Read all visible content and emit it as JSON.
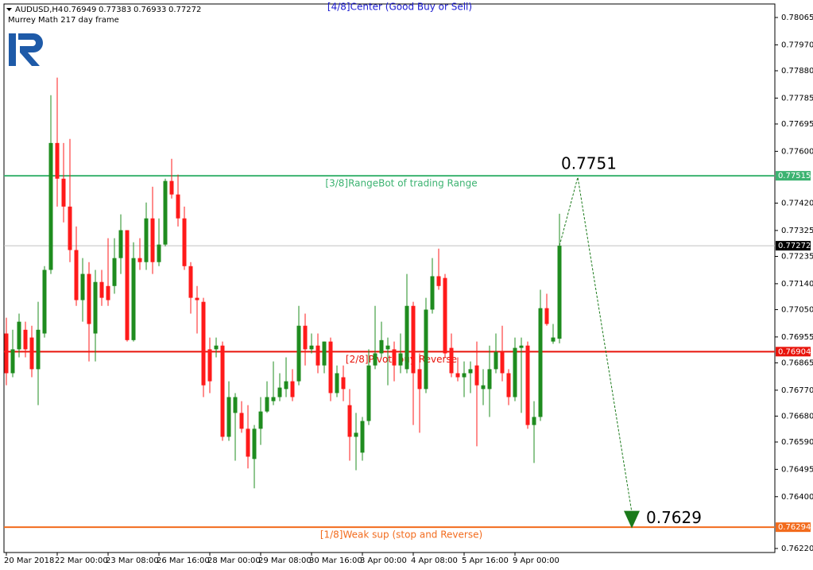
{
  "chart_data": {
    "type": "candlestick",
    "title": "AUDUSD,H4",
    "subtitle": "Murrey Math 217 day frame",
    "top_label": "[4/8]Center (Good Buy or Sell)",
    "up_color": "#1f8c1f",
    "down_color": "#ff1a1a",
    "categories": [
      "20 Mar 2018",
      null,
      null,
      null,
      null,
      null,
      null,
      null,
      "22 Mar 00:00",
      null,
      null,
      null,
      null,
      null,
      null,
      null,
      "23 Mar 08:00",
      null,
      null,
      null,
      null,
      null,
      null,
      null,
      "26 Mar 16:00",
      null,
      null,
      null,
      null,
      null,
      null,
      null,
      "28 Mar 00:00",
      null,
      null,
      null,
      null,
      null,
      null,
      null,
      "29 Mar 08:00",
      null,
      null,
      null,
      null,
      null,
      null,
      null,
      "30 Mar 16:00",
      null,
      null,
      null,
      null,
      null,
      null,
      null,
      "3 Apr 00:00",
      null,
      null,
      null,
      null,
      null,
      null,
      null,
      "4 Apr 08:00",
      null,
      null,
      null,
      null,
      null,
      null,
      null,
      "5 Apr 16:00",
      null,
      null,
      null,
      null,
      null,
      null,
      null,
      "9 Apr 00:00",
      null,
      null,
      null,
      null,
      null,
      null,
      null
    ],
    "open": [
      0.76967,
      0.76829,
      0.76912,
      0.7698,
      0.76953,
      0.76843,
      0.76967,
      0.77188,
      0.77629,
      0.77505,
      0.77408,
      0.77257,
      0.77083,
      0.77174,
      0.76967,
      0.77146,
      0.77132,
      0.77132,
      0.77229,
      0.77326,
      0.76944,
      0.77229,
      0.77215,
      0.77367,
      0.77215,
      0.77276,
      0.77497,
      0.7745,
      0.77367,
      0.77201,
      0.77091,
      0.77077,
      0.76912,
      0.76912,
      0.76925,
      0.76608,
      0.76691,
      0.76691,
      0.76636,
      0.76531,
      0.76636,
      0.76696,
      0.76732,
      0.76746,
      0.76774,
      0.76801,
      0.76801,
      0.76994,
      0.76912,
      0.76925,
      0.76856,
      0.76939,
      0.7676,
      0.76815,
      0.76718,
      0.76608,
      0.76553,
      0.76663,
      0.76856,
      0.76898,
      0.76912,
      0.76912,
      0.76856,
      0.76843,
      0.77063,
      0.76843,
      0.76774,
      0.7705,
      0.77166,
      0.7716,
      0.76917,
      0.76829,
      0.76815,
      0.76829,
      0.76856,
      0.76774,
      0.76774,
      0.76843,
      0.76903,
      0.76829,
      0.76746,
      0.76917,
      0.76925,
      0.76649,
      0.76677,
      0.77055,
      0.76939,
      0.76949
    ],
    "high": [
      0.77022,
      0.7698,
      0.77036,
      0.77008,
      0.76994,
      0.77077,
      0.77201,
      0.77795,
      0.77856,
      0.77629,
      0.77643,
      0.77339,
      0.77229,
      0.77215,
      0.77188,
      0.77188,
      0.77298,
      0.77298,
      0.77381,
      0.77326,
      0.77284,
      0.77298,
      0.77422,
      0.77477,
      0.77367,
      0.77505,
      0.77574,
      0.77519,
      0.77408,
      0.77215,
      0.77132,
      0.77091,
      0.76953,
      0.76953,
      0.76939,
      0.76801,
      0.7676,
      0.76732,
      0.76718,
      0.76649,
      0.76746,
      0.76801,
      0.7687,
      0.76829,
      0.76884,
      0.76843,
      0.77063,
      0.77036,
      0.76967,
      0.76967,
      0.76939,
      0.76953,
      0.76856,
      0.76856,
      0.76774,
      0.76691,
      0.76677,
      0.76912,
      0.77063,
      0.77008,
      0.76953,
      0.76939,
      0.76967,
      0.77174,
      0.77077,
      0.76898,
      0.77091,
      0.77229,
      0.77262,
      0.77174,
      0.76967,
      0.76884,
      0.7687,
      0.7687,
      0.76939,
      0.76843,
      0.76925,
      0.76967,
      0.76994,
      0.76843,
      0.76953,
      0.76953,
      0.76939,
      0.76732,
      0.77119,
      0.77105,
      0.77,
      0.77383
    ],
    "low": [
      0.76787,
      0.76815,
      0.76884,
      0.76884,
      0.76815,
      0.76718,
      0.76953,
      0.77174,
      0.77408,
      0.77353,
      0.77215,
      0.77063,
      0.77008,
      0.7687,
      0.7687,
      0.77063,
      0.77063,
      0.77105,
      0.77174,
      0.76939,
      0.76939,
      0.77188,
      0.77188,
      0.77174,
      0.77201,
      0.7727,
      0.77436,
      0.77339,
      0.77188,
      0.77036,
      0.76967,
      0.76746,
      0.7676,
      0.76884,
      0.76594,
      0.76594,
      0.76525,
      0.76622,
      0.76498,
      0.76429,
      0.7658,
      0.76691,
      0.76718,
      0.76732,
      0.76746,
      0.76732,
      0.76787,
      0.76856,
      0.76898,
      0.76829,
      0.76829,
      0.76732,
      0.76746,
      0.76732,
      0.76525,
      0.76492,
      0.76525,
      0.76649,
      0.76843,
      0.76884,
      0.76787,
      0.76801,
      0.76829,
      0.76829,
      0.76649,
      0.76622,
      0.7676,
      0.77036,
      0.77119,
      0.76884,
      0.76815,
      0.76801,
      0.76746,
      0.7676,
      0.76575,
      0.76718,
      0.76677,
      0.76829,
      0.76801,
      0.76718,
      0.76732,
      0.76691,
      0.76636,
      0.76517,
      0.76663,
      0.76994,
      0.76931,
      0.76933
    ],
    "close": [
      0.76829,
      0.76912,
      0.77008,
      0.76912,
      0.76843,
      0.7698,
      0.77188,
      0.77629,
      0.77505,
      0.77408,
      0.77257,
      0.77083,
      0.77174,
      0.77,
      0.77146,
      0.77091,
      0.77083,
      0.77229,
      0.77326,
      0.76944,
      0.77229,
      0.77215,
      0.77367,
      0.77215,
      0.77276,
      0.77497,
      0.7745,
      0.77367,
      0.77201,
      0.77091,
      0.77083,
      0.76787,
      0.76801,
      0.76925,
      0.76608,
      0.76746,
      0.76746,
      0.76636,
      0.76539,
      0.76636,
      0.76696,
      0.76746,
      0.76746,
      0.76779,
      0.76801,
      0.76746,
      0.76994,
      0.76912,
      0.76925,
      0.76856,
      0.76939,
      0.7676,
      0.76829,
      0.76774,
      0.76608,
      0.76622,
      0.76663,
      0.76856,
      0.76898,
      0.76944,
      0.76925,
      0.76856,
      0.76898,
      0.77063,
      0.76829,
      0.76774,
      0.7705,
      0.77166,
      0.77132,
      0.76898,
      0.76829,
      0.76815,
      0.76829,
      0.76843,
      0.76787,
      0.76787,
      0.76843,
      0.76903,
      0.76829,
      0.76746,
      0.76917,
      0.76925,
      0.76649,
      0.76677,
      0.77055,
      0.77,
      0.76953,
      0.77272
    ],
    "ylim": [
      0.76206,
      0.78112
    ],
    "yticks": [
      0.78065,
      {
        "value": 0.7797,
        "label": "0.77970"
      },
      {
        "value": 0.7788,
        "label": "0.77880"
      },
      0.77785,
      0.77695,
      {
        "value": 0.776,
        "label": "0.77600"
      },
      {
        "value": 0.7742,
        "label": "0.77420"
      },
      0.77325,
      0.77235,
      {
        "value": 0.7714,
        "label": "0.77140"
      },
      {
        "value": 0.7705,
        "label": "0.77050"
      },
      0.76955,
      0.76865,
      {
        "value": 0.7677,
        "label": "0.76770"
      },
      {
        "value": 0.7668,
        "label": "0.76680"
      },
      {
        "value": 0.7659,
        "label": "0.76590"
      },
      0.76495,
      {
        "value": 0.764,
        "label": "0.76400"
      },
      {
        "value": 0.7622,
        "label": "0.76220"
      }
    ],
    "levels": [
      {
        "name": "[3/8]RangeBot of trading Range",
        "value": 0.77515,
        "color": "#3cb371"
      },
      {
        "name": "[2/8]Pivot, buy Reverse",
        "value": 0.76904,
        "color": "#e8140c"
      },
      {
        "name": "[1/8]Weak sup (stop and Reverse)",
        "value": 0.76294,
        "color": "#f26b1d"
      }
    ],
    "forecast": [
      0.7751,
      0.7629
    ],
    "forecast_color": "#1a7a1a"
  }
}
